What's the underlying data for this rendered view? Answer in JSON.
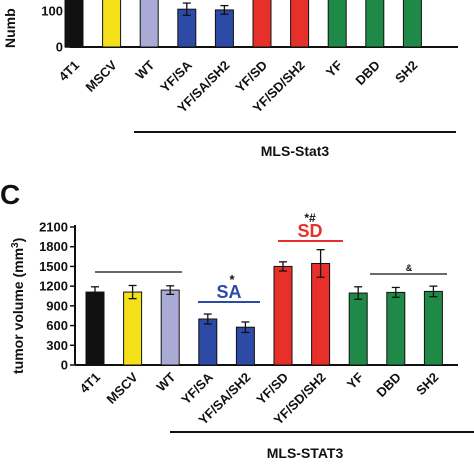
{
  "chart_data": [
    {
      "panel": "",
      "type": "bar",
      "ylabel": "Numb",
      "ylim": [
        0,
        200
      ],
      "yticks": [
        "100",
        "0"
      ],
      "categories": [
        "4T1",
        "MSCV",
        "WT",
        "YF/SA",
        "YF/SA/SH2",
        "YF/SD",
        "YF/SD/SH2",
        "YF",
        "DBD",
        "SH2"
      ],
      "values": [
        165,
        165,
        165,
        105,
        103,
        165,
        165,
        165,
        165,
        165
      ],
      "errors": [
        0,
        0,
        0,
        17,
        12,
        0,
        0,
        0,
        0,
        0
      ],
      "colors": [
        "#111111",
        "#f5e11a",
        "#aaaad6",
        "#2d4aa6",
        "#2d4aa6",
        "#e8302a",
        "#e8302a",
        "#1f8a47",
        "#1f8a47",
        "#1f8a47"
      ],
      "group_label": "MLS-Stat3"
    },
    {
      "panel": "C",
      "type": "bar",
      "ylabel": "tumor volume (mm3)",
      "ylim": [
        0,
        2100
      ],
      "yticks": [
        "2100",
        "1800",
        "1500",
        "1200",
        "900",
        "600",
        "300",
        "0"
      ],
      "categories": [
        "4T1",
        "MSCV",
        "WT",
        "YF/SA",
        "YF/SA/SH2",
        "YF/SD",
        "YF/SD/SH2",
        "YF",
        "DBD",
        "SH2"
      ],
      "values": [
        1110,
        1110,
        1140,
        700,
        575,
        1500,
        1545,
        1095,
        1105,
        1120
      ],
      "errors": [
        80,
        100,
        65,
        75,
        80,
        70,
        210,
        95,
        75,
        80
      ],
      "colors": [
        "#111111",
        "#f5e11a",
        "#aaaad6",
        "#2d4aa6",
        "#2d4aa6",
        "#e8302a",
        "#e8302a",
        "#1f8a47",
        "#1f8a47",
        "#1f8a47"
      ],
      "annotations": [
        {
          "text": "SA",
          "color": "#2d4aa6"
        },
        {
          "text": "*",
          "color": "#111111"
        },
        {
          "text": "SD",
          "color": "#e8302a"
        },
        {
          "text": "*#",
          "color": "#111111"
        },
        {
          "text": "&",
          "color": "#111111"
        }
      ],
      "group_label": "MLS-STAT3"
    }
  ]
}
